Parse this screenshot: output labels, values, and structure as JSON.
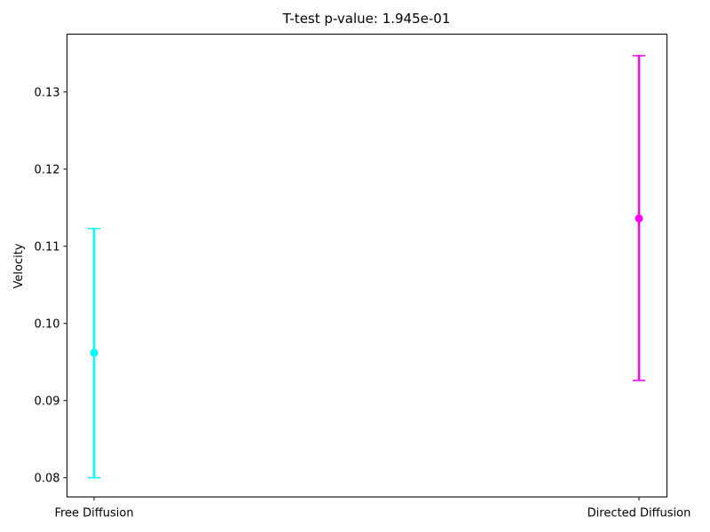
{
  "chart_data": {
    "type": "errorbar",
    "title": "T-test p-value: 1.945e-01",
    "xlabel": "",
    "ylabel": "Velocity",
    "categories": [
      "Free Diffusion",
      "Directed Diffusion"
    ],
    "ylim": [
      0.0775,
      0.1375
    ],
    "yticks": [
      "0.08",
      "0.09",
      "0.10",
      "0.11",
      "0.12",
      "0.13"
    ],
    "ytick_values": [
      0.08,
      0.09,
      0.1,
      0.11,
      0.12,
      0.13
    ],
    "series": [
      {
        "category": "Free Diffusion",
        "mean": 0.0962,
        "lower": 0.08,
        "upper": 0.1123,
        "color": "#00ffff"
      },
      {
        "category": "Directed Diffusion",
        "mean": 0.1136,
        "lower": 0.0926,
        "upper": 0.1347,
        "color": "#ff00ff"
      }
    ],
    "grid": false,
    "legend": "none"
  }
}
